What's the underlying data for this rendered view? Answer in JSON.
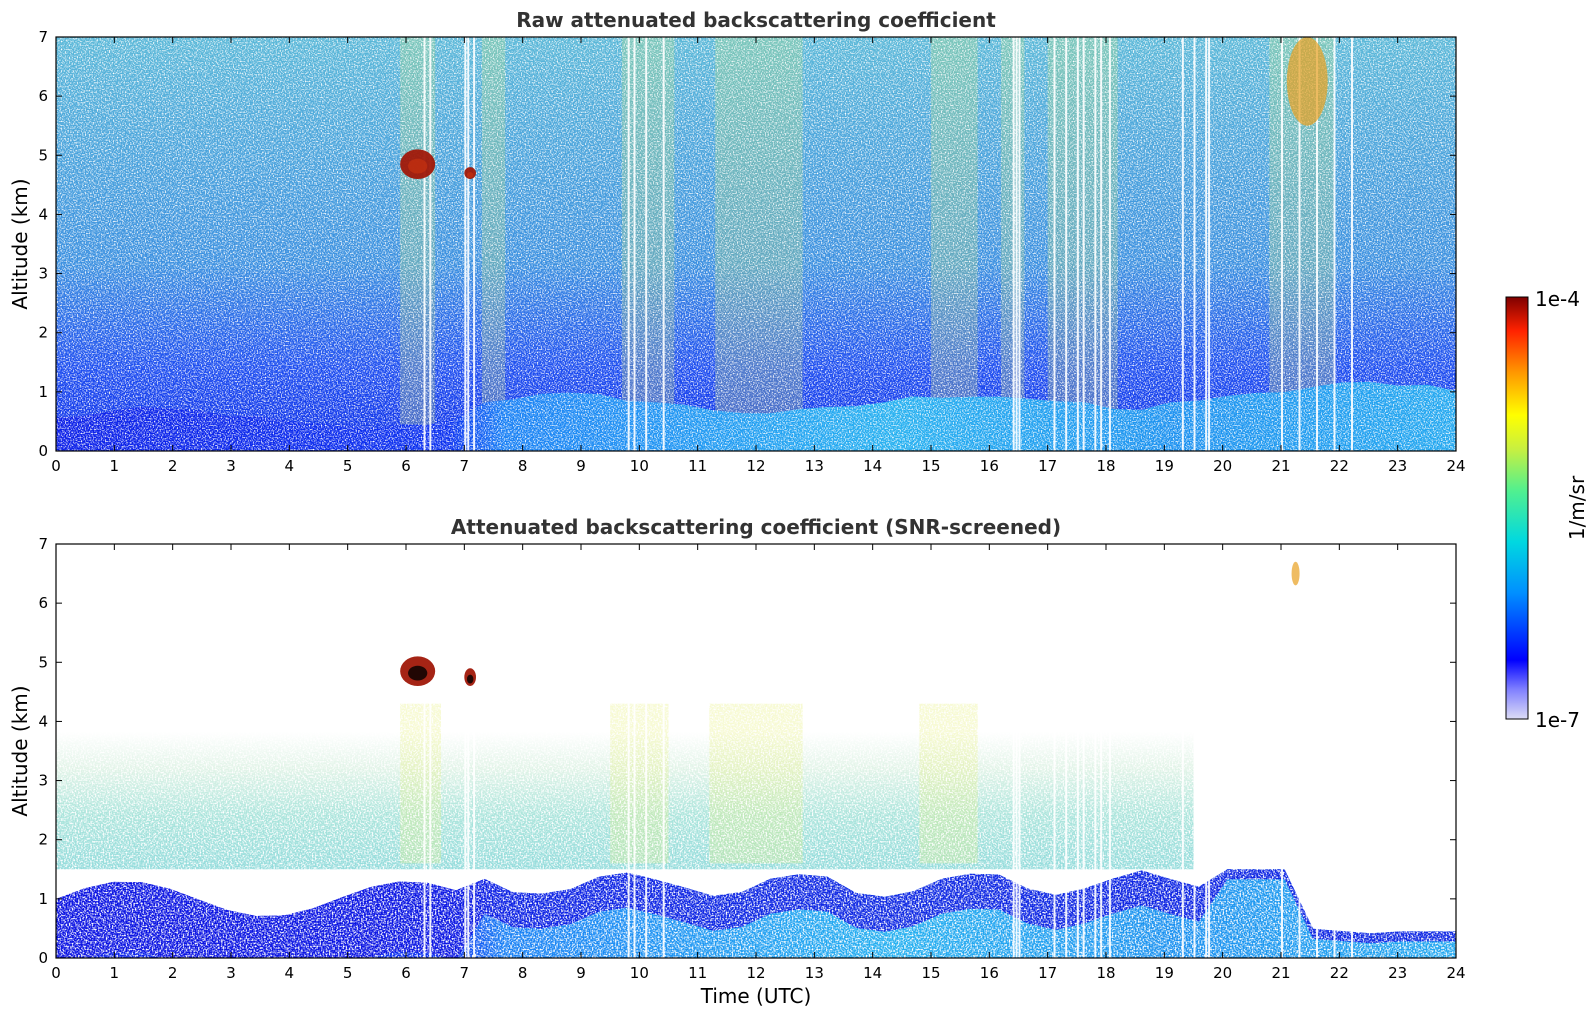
{
  "chart_data": [
    {
      "type": "heatmap",
      "title": "Raw attenuated backscattering coefficient",
      "xlabel": "",
      "ylabel": "Altitude (km)",
      "xlim": [
        0,
        24
      ],
      "ylim": [
        0,
        7
      ],
      "x_ticks": [
        "0",
        "1",
        "2",
        "3",
        "4",
        "5",
        "6",
        "7",
        "8",
        "9",
        "10",
        "11",
        "12",
        "13",
        "14",
        "15",
        "16",
        "17",
        "18",
        "19",
        "20",
        "21",
        "22",
        "23",
        "24"
      ],
      "y_ticks": [
        "0",
        "1",
        "2",
        "3",
        "4",
        "5",
        "6",
        "7"
      ],
      "screened": false,
      "features": [
        {
          "name": "boundary layer",
          "x_range": [
            0,
            24
          ],
          "altitude_top_km": [
            0.5,
            1.0
          ]
        },
        {
          "name": "cloud",
          "x_range": [
            5.9,
            6.5
          ],
          "altitude_km": [
            4.6,
            5.1
          ]
        },
        {
          "name": "cloud",
          "x_range": [
            7.0,
            7.2
          ],
          "altitude_km": [
            4.6,
            4.8
          ]
        },
        {
          "name": "cloud",
          "x_range": [
            21.1,
            21.8
          ],
          "altitude_km": [
            5.5,
            7.0
          ]
        }
      ]
    },
    {
      "type": "heatmap",
      "title": "Attenuated backscattering coefficient (SNR-screened)",
      "xlabel": "Time (UTC)",
      "ylabel": "Altitude (km)",
      "xlim": [
        0,
        24
      ],
      "ylim": [
        0,
        7
      ],
      "x_ticks": [
        "0",
        "1",
        "2",
        "3",
        "4",
        "5",
        "6",
        "7",
        "8",
        "9",
        "10",
        "11",
        "12",
        "13",
        "14",
        "15",
        "16",
        "17",
        "18",
        "19",
        "20",
        "21",
        "22",
        "23",
        "24"
      ],
      "y_ticks": [
        "0",
        "1",
        "2",
        "3",
        "4",
        "5",
        "6",
        "7"
      ],
      "screened": true,
      "features": [
        {
          "name": "boundary layer",
          "x_range": [
            0,
            24
          ],
          "altitude_top_km": [
            0.4,
            1.6
          ]
        },
        {
          "name": "cloud",
          "x_range": [
            5.9,
            6.5
          ],
          "altitude_km": [
            4.6,
            5.1
          ]
        },
        {
          "name": "cloud",
          "x_range": [
            7.0,
            7.2
          ],
          "altitude_km": [
            4.6,
            4.9
          ]
        },
        {
          "name": "cloud",
          "x_range": [
            21.2,
            21.3
          ],
          "altitude_km": [
            6.3,
            6.7
          ]
        }
      ]
    }
  ],
  "colorbar": {
    "label": "1/m/sr",
    "max_label": "1e-4",
    "min_label": "1e-7",
    "scale": "log",
    "range": [
      1e-07,
      0.0001
    ],
    "colormap": [
      "#dcdcf5",
      "#0000ff",
      "#00aaff",
      "#00e0c0",
      "#a0f070",
      "#ffff00",
      "#ff9900",
      "#ff2200",
      "#7f0000"
    ]
  }
}
